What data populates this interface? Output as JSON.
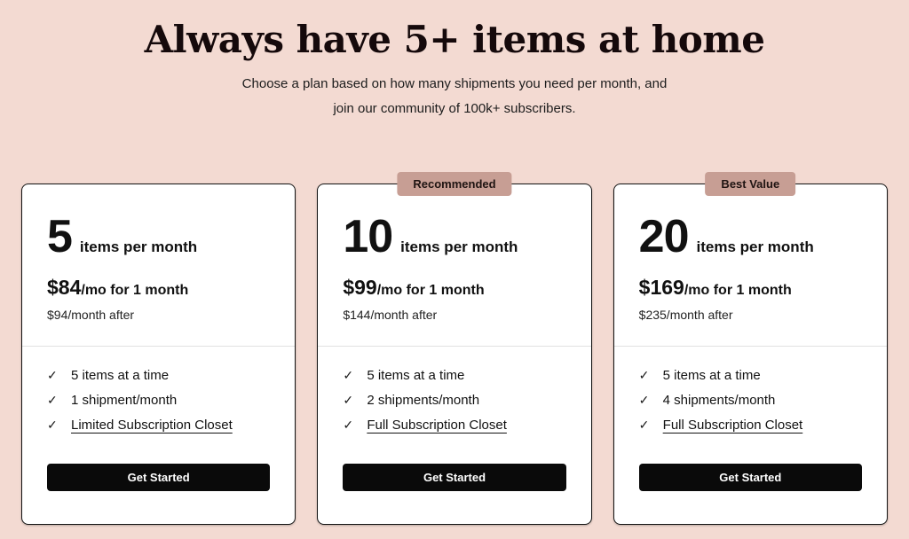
{
  "page": {
    "background_color": "#f3dad2",
    "badge_color": "#c79e94",
    "button_color": "#0a0a0a"
  },
  "header": {
    "title": "Always have 5+ items at home",
    "subtitle_line1": "Choose a plan based on how many shipments you need per month, and",
    "subtitle_line2": "join our community of 100k+ subscribers."
  },
  "icons": {
    "check": "✓"
  },
  "plans": [
    {
      "badge": "",
      "quantity": "5",
      "unit": "items per month",
      "price": "$84",
      "price_suffix": "/mo for 1 month",
      "after_price": "$94/month after",
      "features": [
        {
          "text": "5 items at a time",
          "link": false
        },
        {
          "text": "1 shipment/month",
          "link": false
        },
        {
          "text": "Limited Subscription Closet",
          "link": true
        }
      ],
      "cta": "Get Started"
    },
    {
      "badge": "Recommended",
      "quantity": "10",
      "unit": "items per month",
      "price": "$99",
      "price_suffix": "/mo for 1 month",
      "after_price": "$144/month after",
      "features": [
        {
          "text": "5 items at a time",
          "link": false
        },
        {
          "text": "2 shipments/month",
          "link": false
        },
        {
          "text": "Full Subscription Closet",
          "link": true
        }
      ],
      "cta": "Get Started"
    },
    {
      "badge": "Best Value",
      "quantity": "20",
      "unit": "items per month",
      "price": "$169",
      "price_suffix": "/mo for 1 month",
      "after_price": "$235/month after",
      "features": [
        {
          "text": "5 items at a time",
          "link": false
        },
        {
          "text": "4 shipments/month",
          "link": false
        },
        {
          "text": "Full Subscription Closet",
          "link": true
        }
      ],
      "cta": "Get Started"
    }
  ]
}
